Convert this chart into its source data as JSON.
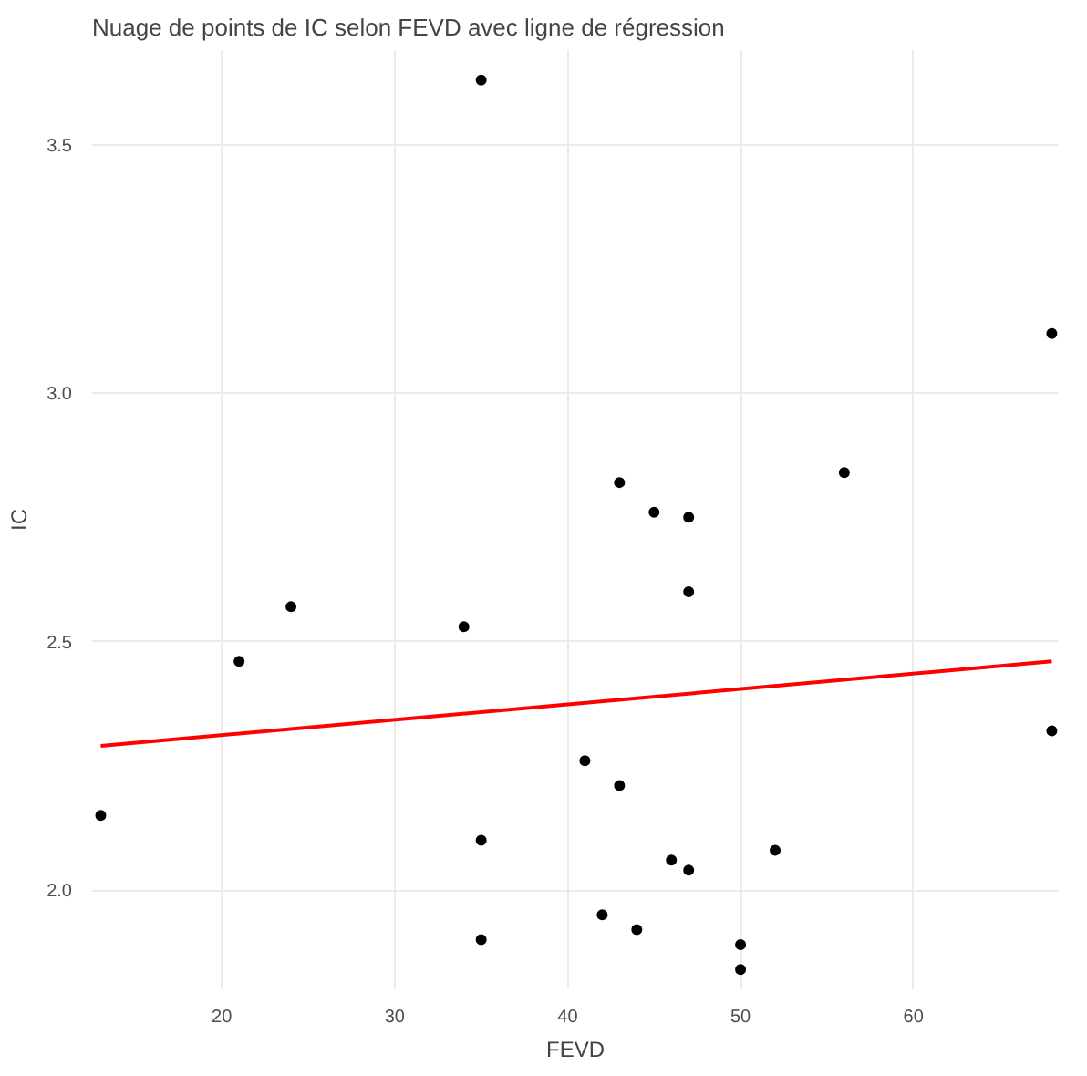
{
  "chart_data": {
    "type": "scatter",
    "title": "Nuage de points de IC selon FEVD avec ligne de régression",
    "xlabel": "FEVD",
    "ylabel": "IC",
    "xlim": [
      12.5,
      68.4
    ],
    "ylim": [
      1.8,
      3.69
    ],
    "xticks": [
      {
        "value": 20,
        "label": "20"
      },
      {
        "value": 30,
        "label": "30"
      },
      {
        "value": 40,
        "label": "40"
      },
      {
        "value": 50,
        "label": "50"
      },
      {
        "value": 60,
        "label": "60"
      }
    ],
    "yticks": [
      {
        "value": 2,
        "label": "2.0"
      },
      {
        "value": 2.5,
        "label": "2.5"
      },
      {
        "value": 3,
        "label": "3.0"
      },
      {
        "value": 3.5,
        "label": "3.5"
      }
    ],
    "grid": true,
    "marker": "circle",
    "series": [
      {
        "color": "#000000",
        "x": [
          35,
          68,
          13,
          21,
          24,
          34,
          43,
          45,
          47,
          47,
          56,
          68,
          41,
          43,
          35,
          46,
          47,
          52,
          42,
          44,
          35,
          50,
          50
        ],
        "values": [
          3.63,
          3.12,
          2.15,
          2.46,
          2.57,
          2.53,
          2.82,
          2.76,
          2.75,
          2.6,
          2.84,
          2.32,
          2.26,
          2.21,
          2.1,
          2.06,
          2.04,
          2.08,
          1.95,
          1.92,
          1.9,
          1.89,
          1.84
        ]
      },
      {
        "type": "line",
        "color": "#ff0000",
        "x": [
          13,
          68
        ],
        "values": [
          2.29,
          2.46
        ],
        "line_style": "solid",
        "marker": "none"
      }
    ]
  }
}
